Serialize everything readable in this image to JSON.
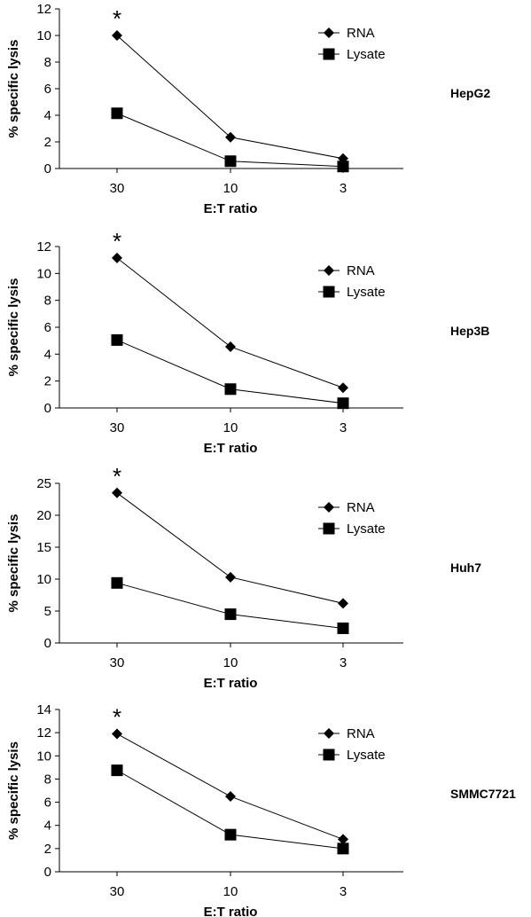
{
  "chart_data": [
    {
      "type": "line",
      "xlabel": "E:T ratio",
      "ylabel": "% specific lysis",
      "categories": [
        "30",
        "10",
        "3"
      ],
      "ylim": [
        0,
        12
      ],
      "yticks": [
        0,
        2,
        4,
        6,
        8,
        10,
        12
      ],
      "series": [
        {
          "name": "RNA",
          "marker": "diamond",
          "values": [
            10.0,
            2.35,
            0.75
          ]
        },
        {
          "name": "Lysate",
          "marker": "square",
          "values": [
            4.15,
            0.55,
            0.15
          ]
        }
      ],
      "annotation": "*",
      "label": "HepG2",
      "legend_position": "top-right",
      "grid": false
    },
    {
      "type": "line",
      "xlabel": "E:T ratio",
      "ylabel": "% specific lysis",
      "categories": [
        "30",
        "10",
        "3"
      ],
      "ylim": [
        0,
        12
      ],
      "yticks": [
        0,
        2,
        4,
        6,
        8,
        10,
        12
      ],
      "series": [
        {
          "name": "RNA",
          "marker": "diamond",
          "values": [
            11.15,
            4.55,
            1.5
          ]
        },
        {
          "name": "Lysate",
          "marker": "square",
          "values": [
            5.05,
            1.4,
            0.35
          ]
        }
      ],
      "annotation": "*",
      "label": "Hep3B",
      "legend_position": "top-right",
      "grid": false
    },
    {
      "type": "line",
      "xlabel": "E:T ratio",
      "ylabel": "% specific lysis",
      "categories": [
        "30",
        "10",
        "3"
      ],
      "ylim": [
        0,
        25
      ],
      "yticks": [
        0,
        5,
        10,
        15,
        20,
        25
      ],
      "series": [
        {
          "name": "RNA",
          "marker": "diamond",
          "values": [
            23.5,
            10.3,
            6.2
          ]
        },
        {
          "name": "Lysate",
          "marker": "square",
          "values": [
            9.4,
            4.5,
            2.3
          ]
        }
      ],
      "annotation": "*",
      "label": "Huh7",
      "legend_position": "top-right",
      "grid": false
    },
    {
      "type": "line",
      "xlabel": "E:T ratio",
      "ylabel": "% specific lysis",
      "categories": [
        "30",
        "10",
        "3"
      ],
      "ylim": [
        0,
        14
      ],
      "yticks": [
        0,
        2,
        4,
        6,
        8,
        10,
        12,
        14
      ],
      "series": [
        {
          "name": "RNA",
          "marker": "diamond",
          "values": [
            11.9,
            6.5,
            2.8
          ]
        },
        {
          "name": "Lysate",
          "marker": "square",
          "values": [
            8.75,
            3.2,
            2.0
          ]
        }
      ],
      "annotation": "*",
      "label": "SMMC7721",
      "legend_position": "top-right",
      "grid": false
    }
  ]
}
